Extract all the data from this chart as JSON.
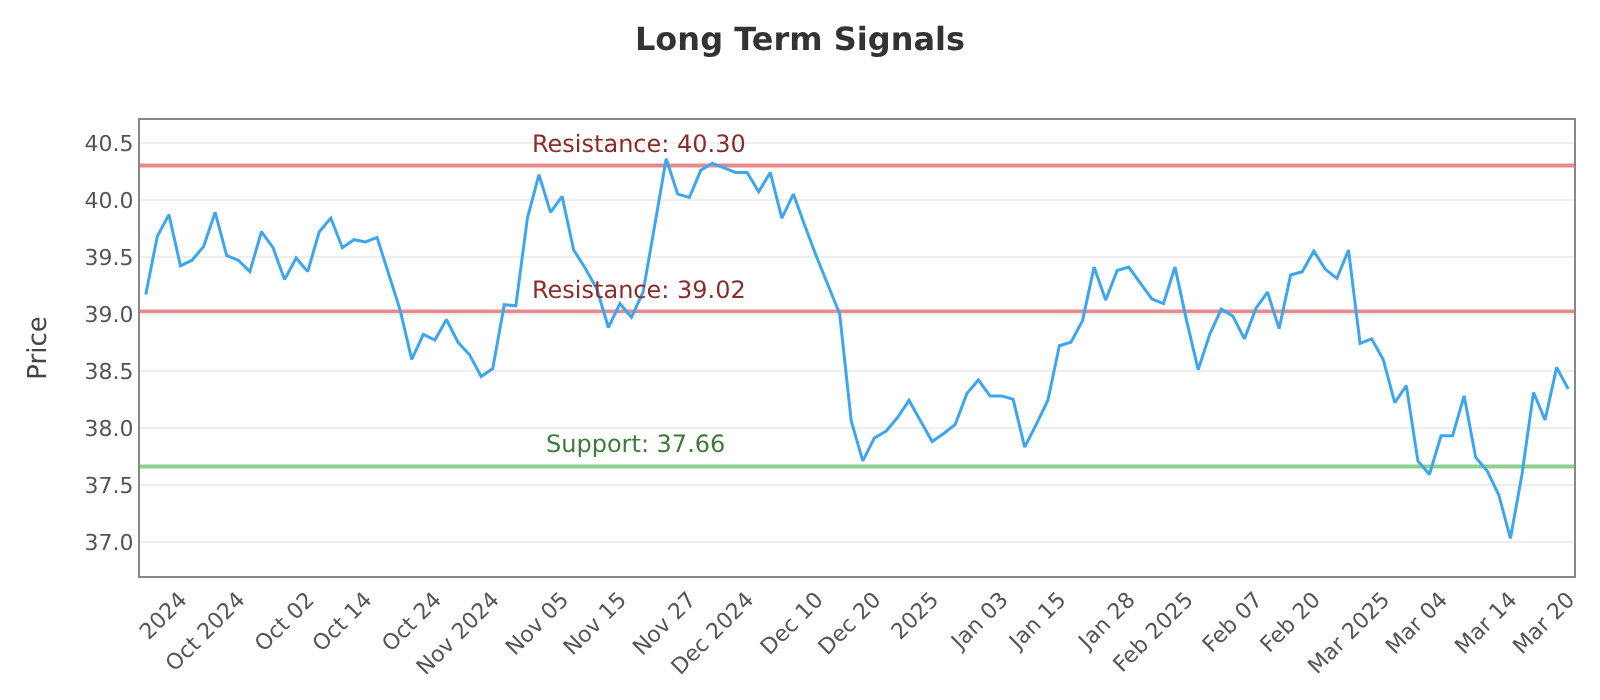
{
  "chart_data": {
    "type": "line",
    "title": "Long Term Signals",
    "ylabel": "Price",
    "categories": [
      null,
      null,
      null,
      "2024",
      null,
      null,
      null,
      null,
      "Oct 2024",
      null,
      null,
      null,
      null,
      null,
      "Oct 02",
      null,
      null,
      null,
      null,
      "Oct 14",
      null,
      null,
      null,
      null,
      null,
      "Oct 24",
      null,
      null,
      null,
      null,
      "Nov 2024",
      null,
      null,
      null,
      null,
      null,
      "Nov 05",
      null,
      null,
      null,
      null,
      "Nov 15",
      null,
      null,
      null,
      null,
      null,
      "Nov 27",
      null,
      null,
      null,
      null,
      "Dec 2024",
      null,
      null,
      null,
      null,
      null,
      "Dec 10",
      null,
      null,
      null,
      null,
      "Dec 20",
      null,
      null,
      null,
      null,
      "2025",
      null,
      null,
      null,
      null,
      null,
      "Jan 03",
      null,
      null,
      null,
      null,
      "Jan 15",
      null,
      null,
      null,
      null,
      null,
      "Jan 28",
      null,
      null,
      null,
      null,
      "Feb 2025",
      null,
      null,
      null,
      null,
      null,
      "Feb 07",
      null,
      null,
      null,
      null,
      "Feb 20",
      null,
      null,
      null,
      null,
      null,
      "Mar 2025",
      null,
      null,
      null,
      null,
      "Mar 04",
      null,
      null,
      null,
      null,
      null,
      "Mar 14",
      null,
      null,
      null,
      null,
      "Mar 20"
    ],
    "series": [
      {
        "color": "#3ea6ee",
        "values": [
          39.17,
          39.68,
          39.87,
          39.42,
          39.47,
          39.59,
          39.89,
          39.51,
          39.47,
          39.37,
          39.72,
          39.58,
          39.3,
          39.49,
          39.37,
          39.72,
          39.84,
          39.58,
          39.65,
          39.63,
          39.67,
          39.35,
          39.03,
          38.6,
          38.82,
          38.77,
          38.95,
          38.75,
          38.64,
          38.45,
          38.52,
          39.08,
          39.07,
          39.84,
          40.22,
          39.89,
          40.03,
          39.56,
          39.4,
          39.22,
          38.88,
          39.09,
          38.97,
          39.19,
          39.77,
          40.36,
          40.05,
          40.02,
          40.26,
          40.32,
          40.28,
          40.24,
          40.24,
          40.07,
          40.24,
          39.84,
          40.05,
          39.77,
          39.5,
          39.25,
          39.0,
          38.06,
          37.71,
          37.91,
          37.97,
          38.09,
          38.24,
          38.06,
          37.88,
          37.95,
          38.03,
          38.3,
          38.42,
          38.28,
          38.28,
          38.25,
          37.83,
          38.03,
          38.24,
          38.72,
          38.75,
          38.94,
          39.41,
          39.12,
          39.38,
          39.41,
          39.27,
          39.13,
          39.09,
          39.41,
          38.94,
          38.51,
          38.82,
          39.04,
          38.98,
          38.78,
          39.05,
          39.19,
          38.87,
          39.34,
          39.37,
          39.55,
          39.39,
          39.31,
          39.56,
          38.74,
          38.78,
          38.6,
          38.22,
          38.37,
          37.71,
          37.59,
          37.93,
          37.93,
          38.28,
          37.74,
          37.62,
          37.41,
          37.03,
          37.59,
          38.31,
          38.07,
          38.53,
          38.34
        ]
      }
    ],
    "ylim": [
      36.7,
      40.7
    ],
    "yticks": [
      {
        "value": 37,
        "label": "37.0"
      },
      {
        "value": 37.5,
        "label": "37.5"
      },
      {
        "value": 38,
        "label": "38.0"
      },
      {
        "value": 38.5,
        "label": "38.5"
      },
      {
        "value": 39,
        "label": "39.0"
      },
      {
        "value": 39.5,
        "label": "39.5"
      },
      {
        "value": 40,
        "label": "40.0"
      },
      {
        "value": 40.5,
        "label": "40.5"
      }
    ],
    "ref_lines": [
      {
        "axis": "y",
        "value": 40.3,
        "label": "Resistance: 40.30",
        "color": "#e8898c"
      },
      {
        "axis": "y",
        "value": 39.02,
        "label": "Resistance: 39.02",
        "color": "#e8898c"
      },
      {
        "axis": "y",
        "value": 37.66,
        "label": "Support: 37.66",
        "color": "#8fd08f"
      }
    ],
    "grid": "y",
    "marker": "none",
    "line_style": "solid"
  }
}
